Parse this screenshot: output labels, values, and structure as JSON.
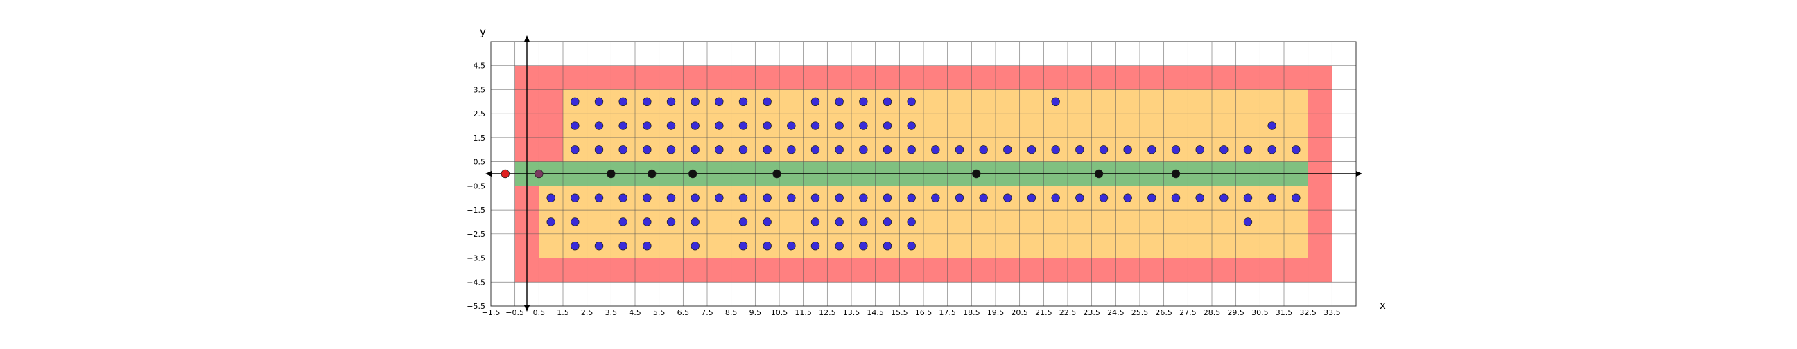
{
  "chart_data": {
    "type": "scatter",
    "title": "",
    "xlabel": "x",
    "ylabel": "y",
    "xlim": [
      -1.5,
      34.5
    ],
    "ylim": [
      -5.5,
      5.5
    ],
    "grid": true,
    "xticks": [
      "-1.5",
      "-0.5",
      "0.5",
      "1.5",
      "2.5",
      "3.5",
      "4.5",
      "5.5",
      "6.5",
      "7.5",
      "8.5",
      "9.5",
      "10.5",
      "11.5",
      "12.5",
      "13.5",
      "14.5",
      "15.5",
      "16.5",
      "17.5",
      "18.5",
      "19.5",
      "20.5",
      "21.5",
      "22.5",
      "23.5",
      "24.5",
      "25.5",
      "26.5",
      "27.5",
      "28.5",
      "29.5",
      "30.5",
      "31.5",
      "32.5",
      "33.5"
    ],
    "yticks": [
      "4.5",
      "3.5",
      "2.5",
      "1.5",
      "0.5",
      "-0.5",
      "-1.5",
      "-2.5",
      "-3.5",
      "-4.5",
      "-5.5"
    ],
    "regions": [
      {
        "x": [
          -0.5,
          33.5
        ],
        "y": [
          -4.5,
          4.5
        ],
        "color": "#ff8080"
      },
      {
        "x": [
          1.5,
          32.5
        ],
        "y": [
          0.5,
          3.5
        ],
        "color": "#ffd280"
      },
      {
        "x": [
          0.5,
          32.5
        ],
        "y": [
          -3.5,
          -0.5
        ],
        "color": "#ffd280"
      },
      {
        "x": [
          -0.5,
          32.5
        ],
        "y": [
          -0.5,
          0.5
        ],
        "color": "#80c080"
      }
    ],
    "series": [
      {
        "marker_color": "#3a2bd8",
        "points": [
          [
            2,
            3
          ],
          [
            3,
            3
          ],
          [
            4,
            3
          ],
          [
            5,
            3
          ],
          [
            6,
            3
          ],
          [
            7,
            3
          ],
          [
            8,
            3
          ],
          [
            9,
            3
          ],
          [
            10,
            3
          ],
          [
            12,
            3
          ],
          [
            13,
            3
          ],
          [
            14,
            3
          ],
          [
            15,
            3
          ],
          [
            16,
            3
          ],
          [
            22,
            3
          ],
          [
            2,
            2
          ],
          [
            3,
            2
          ],
          [
            4,
            2
          ],
          [
            5,
            2
          ],
          [
            6,
            2
          ],
          [
            7,
            2
          ],
          [
            8,
            2
          ],
          [
            9,
            2
          ],
          [
            10,
            2
          ],
          [
            11,
            2
          ],
          [
            12,
            2
          ],
          [
            13,
            2
          ],
          [
            14,
            2
          ],
          [
            15,
            2
          ],
          [
            16,
            2
          ],
          [
            31,
            2
          ],
          [
            2,
            1
          ],
          [
            3,
            1
          ],
          [
            4,
            1
          ],
          [
            5,
            1
          ],
          [
            6,
            1
          ],
          [
            7,
            1
          ],
          [
            8,
            1
          ],
          [
            9,
            1
          ],
          [
            10,
            1
          ],
          [
            11,
            1
          ],
          [
            12,
            1
          ],
          [
            13,
            1
          ],
          [
            14,
            1
          ],
          [
            15,
            1
          ],
          [
            16,
            1
          ],
          [
            17,
            1
          ],
          [
            18,
            1
          ],
          [
            19,
            1
          ],
          [
            20,
            1
          ],
          [
            21,
            1
          ],
          [
            22,
            1
          ],
          [
            23,
            1
          ],
          [
            24,
            1
          ],
          [
            25,
            1
          ],
          [
            26,
            1
          ],
          [
            27,
            1
          ],
          [
            28,
            1
          ],
          [
            29,
            1
          ],
          [
            30,
            1
          ],
          [
            31,
            1
          ],
          [
            32,
            1
          ],
          [
            1,
            -1
          ],
          [
            2,
            -1
          ],
          [
            3,
            -1
          ],
          [
            4,
            -1
          ],
          [
            5,
            -1
          ],
          [
            6,
            -1
          ],
          [
            7,
            -1
          ],
          [
            8,
            -1
          ],
          [
            9,
            -1
          ],
          [
            10,
            -1
          ],
          [
            11,
            -1
          ],
          [
            12,
            -1
          ],
          [
            13,
            -1
          ],
          [
            14,
            -1
          ],
          [
            15,
            -1
          ],
          [
            16,
            -1
          ],
          [
            17,
            -1
          ],
          [
            18,
            -1
          ],
          [
            19,
            -1
          ],
          [
            20,
            -1
          ],
          [
            21,
            -1
          ],
          [
            22,
            -1
          ],
          [
            23,
            -1
          ],
          [
            24,
            -1
          ],
          [
            25,
            -1
          ],
          [
            26,
            -1
          ],
          [
            27,
            -1
          ],
          [
            28,
            -1
          ],
          [
            29,
            -1
          ],
          [
            30,
            -1
          ],
          [
            31,
            -1
          ],
          [
            32,
            -1
          ],
          [
            1,
            -2
          ],
          [
            2,
            -2
          ],
          [
            4,
            -2
          ],
          [
            5,
            -2
          ],
          [
            6,
            -2
          ],
          [
            7,
            -2
          ],
          [
            9,
            -2
          ],
          [
            10,
            -2
          ],
          [
            12,
            -2
          ],
          [
            13,
            -2
          ],
          [
            14,
            -2
          ],
          [
            15,
            -2
          ],
          [
            16,
            -2
          ],
          [
            30,
            -2
          ],
          [
            2,
            -3
          ],
          [
            3,
            -3
          ],
          [
            4,
            -3
          ],
          [
            5,
            -3
          ],
          [
            7,
            -3
          ],
          [
            9,
            -3
          ],
          [
            10,
            -3
          ],
          [
            11,
            -3
          ],
          [
            12,
            -3
          ],
          [
            13,
            -3
          ],
          [
            14,
            -3
          ],
          [
            15,
            -3
          ],
          [
            16,
            -3
          ]
        ]
      },
      {
        "marker_color": "#111111",
        "points": [
          [
            3.5,
            0
          ],
          [
            5.2,
            0
          ],
          [
            6.9,
            0
          ],
          [
            10.4,
            0
          ],
          [
            18.7,
            0
          ],
          [
            23.8,
            0
          ],
          [
            27,
            0
          ]
        ]
      },
      {
        "marker_color": "#e02020",
        "points": [
          [
            -0.9,
            0
          ]
        ]
      },
      {
        "marker_color": "#7a3a60",
        "points": [
          [
            0.5,
            0
          ]
        ]
      }
    ]
  }
}
